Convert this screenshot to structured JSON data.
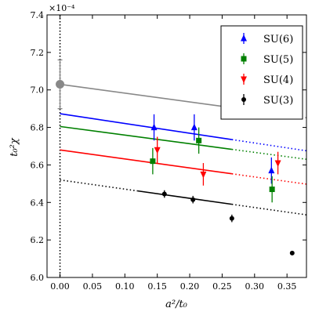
{
  "chart_data": {
    "type": "scatter",
    "xlabel": "a²/t₀",
    "ylabel": "t₀²χ",
    "y_multiplier": "×10⁻⁴",
    "xlim": [
      -0.02,
      0.38
    ],
    "ylim": [
      6.0,
      7.4
    ],
    "x_ticks": [
      "0.00",
      "0.05",
      "0.10",
      "0.15",
      "0.20",
      "0.25",
      "0.30",
      "0.35"
    ],
    "x_tick_values": [
      0.0,
      0.05,
      0.1,
      0.15,
      0.2,
      0.25,
      0.3,
      0.35
    ],
    "y_ticks": [
      "6.0",
      "6.2",
      "6.4",
      "6.6",
      "6.8",
      "7.0",
      "7.2",
      "7.4"
    ],
    "y_tick_values": [
      6.0,
      6.2,
      6.4,
      6.6,
      6.8,
      7.0,
      7.2,
      7.4
    ],
    "grid": false,
    "legend_position": "top-right",
    "continuum_line_x": 0.0,
    "series": [
      {
        "name": "SU(6)",
        "color": "#0000ff",
        "marker": "triangle-up",
        "points": [
          {
            "x": 0.145,
            "y": 6.8,
            "err": 0.07
          },
          {
            "x": 0.207,
            "y": 6.8,
            "err": 0.07
          },
          {
            "x": 0.326,
            "y": 6.57,
            "err": 0.07
          }
        ],
        "fit": {
          "intercept": 6.873,
          "slope": -0.52,
          "solid_range": [
            0.0,
            0.265
          ],
          "dotted_range": [
            0.265,
            0.38
          ]
        }
      },
      {
        "name": "SU(5)",
        "color": "#008000",
        "marker": "square",
        "points": [
          {
            "x": 0.143,
            "y": 6.62,
            "err": 0.07
          },
          {
            "x": 0.214,
            "y": 6.73,
            "err": 0.07
          },
          {
            "x": 0.327,
            "y": 6.47,
            "err": 0.07
          }
        ],
        "fit": {
          "intercept": 6.805,
          "slope": -0.46,
          "solid_range": [
            0.0,
            0.265
          ],
          "dotted_range": [
            0.265,
            0.38
          ]
        }
      },
      {
        "name": "SU(4)",
        "color": "#ff0000",
        "marker": "triangle-down",
        "points": [
          {
            "x": 0.15,
            "y": 6.68,
            "err": 0.07
          },
          {
            "x": 0.221,
            "y": 6.55,
            "err": 0.06
          },
          {
            "x": 0.336,
            "y": 6.61,
            "err": 0.06
          }
        ],
        "fit": {
          "intercept": 6.68,
          "slope": -0.48,
          "solid_range": [
            0.0,
            0.265
          ],
          "dotted_range": [
            0.265,
            0.38
          ]
        }
      },
      {
        "name": "SU(3)",
        "color": "#000000",
        "marker": "circle",
        "points": [
          {
            "x": 0.161,
            "y": 6.445,
            "err": 0.02
          },
          {
            "x": 0.205,
            "y": 6.415,
            "err": 0.02
          },
          {
            "x": 0.265,
            "y": 6.315,
            "err": 0.02
          },
          {
            "x": 0.358,
            "y": 6.13,
            "err": 0.0
          }
        ],
        "fit": {
          "intercept": 6.52,
          "slope": -0.49,
          "solid_range": [
            0.12,
            0.265
          ],
          "dotted_range": [
            0.0,
            0.12
          ],
          "dotted_range_2": [
            0.265,
            0.38
          ]
        }
      },
      {
        "name": "",
        "color": "#888888",
        "marker": "circle-large",
        "points": [
          {
            "x": 0.0,
            "y": 7.03,
            "err": 0.13
          }
        ],
        "fit": {
          "intercept": 7.03,
          "slope": -0.47,
          "solid_range": [
            0.0,
            0.265
          ],
          "dotted_range": [
            0.265,
            0.38
          ]
        }
      }
    ]
  }
}
